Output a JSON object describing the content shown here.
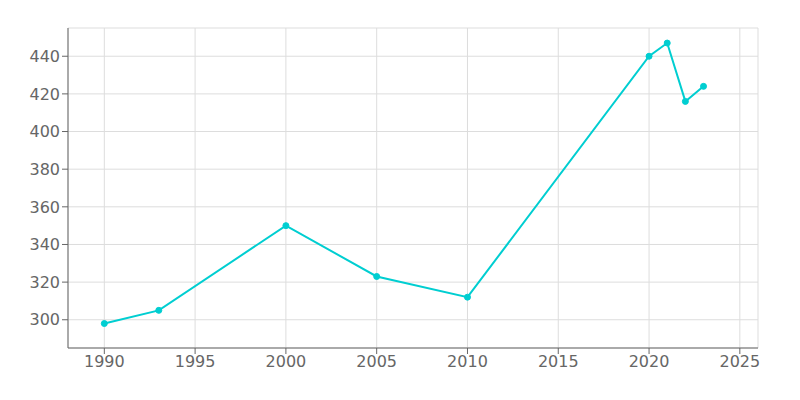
{
  "chart_data": {
    "type": "line",
    "x": [
      1990,
      1993,
      2000,
      2005,
      2010,
      2020,
      2021,
      2022,
      2023
    ],
    "values": [
      298,
      305,
      350,
      323,
      312,
      440,
      447,
      416,
      424
    ],
    "color": "#00CED1",
    "marker": "circle",
    "xlim": [
      1988,
      2026
    ],
    "ylim": [
      285,
      455
    ],
    "xticks": [
      1990,
      1995,
      2000,
      2005,
      2010,
      2015,
      2020,
      2025
    ],
    "yticks": [
      300,
      320,
      340,
      360,
      380,
      400,
      420,
      440
    ],
    "grid": true
  }
}
